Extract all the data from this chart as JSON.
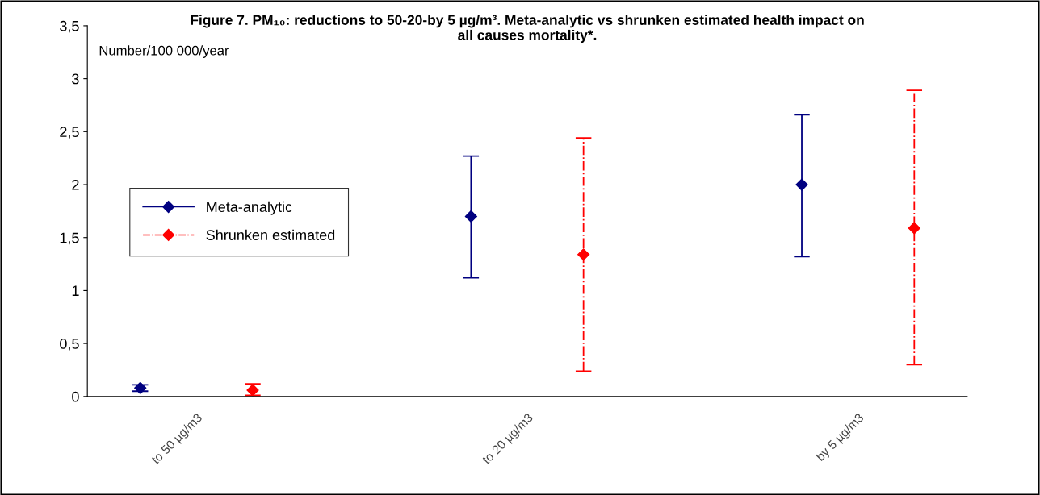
{
  "chart_data": {
    "type": "scatter",
    "title": "Figure 7. PM₁₀: reductions to 50-20-by 5 µg/m³. Meta-analytic vs shrunken estimated health impact on\nall causes mortality*.",
    "ylabel": "Number/100 000/year",
    "categories": [
      "to 50 µg/m3",
      "to 20 µg/m3",
      "by 5 µg/m3"
    ],
    "series": [
      {
        "name": "Meta-analytic",
        "color": "#000080",
        "line_style": "solid",
        "values": [
          0.08,
          1.7,
          2.0
        ],
        "errors": [
          [
            0.05,
            0.11
          ],
          [
            1.12,
            2.27
          ],
          [
            1.32,
            2.66
          ]
        ]
      },
      {
        "name": "Shrunken estimated",
        "color": "#ff0000",
        "line_style": "dashed",
        "values": [
          0.06,
          1.34,
          1.59
        ],
        "errors": [
          [
            0.01,
            0.12
          ],
          [
            0.24,
            2.44
          ],
          [
            0.3,
            2.89
          ]
        ]
      }
    ],
    "marker": "diamond",
    "ylim": [
      0,
      3.5
    ],
    "yticks": [
      0,
      {
        "value": 0.5,
        "label": "0,5"
      },
      1,
      {
        "value": 1.5,
        "label": "1,5"
      },
      2,
      {
        "value": 2.5,
        "label": "2,5"
      },
      3,
      {
        "value": 3.5,
        "label": "3,5"
      }
    ],
    "grid": false,
    "legend": "left"
  }
}
